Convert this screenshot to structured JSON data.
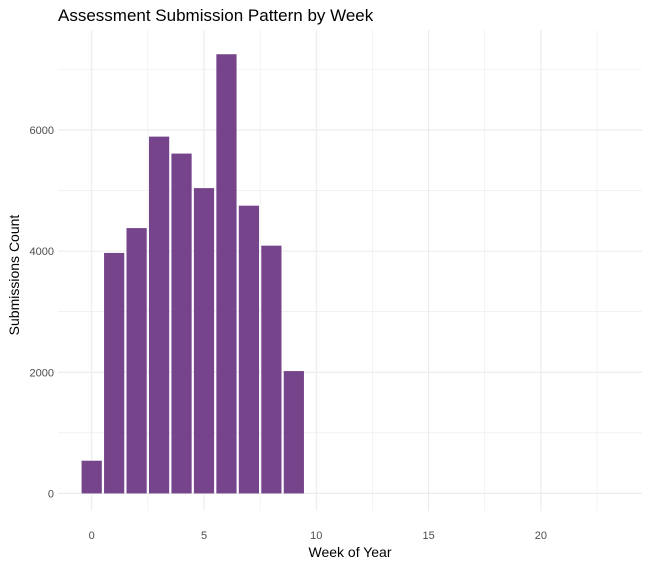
{
  "chart_data": {
    "type": "bar",
    "title": "Assessment Submission Pattern by Week",
    "xlabel": "Week of Year",
    "ylabel": "Submissions Count",
    "x": [
      0,
      1,
      2,
      3,
      4,
      5,
      6,
      7,
      8,
      9
    ],
    "values": [
      540,
      3970,
      4380,
      5890,
      5610,
      5040,
      7250,
      4750,
      4090,
      2020
    ],
    "xlim": [
      -1.5,
      24.5
    ],
    "ylim": [
      -290,
      7650
    ],
    "xticks": [
      0,
      5,
      10,
      15,
      20
    ],
    "yticks": [
      0,
      2000,
      4000,
      6000
    ],
    "grid": true,
    "bar_color": "#76448a",
    "gridline_color": "#ebebeb"
  }
}
